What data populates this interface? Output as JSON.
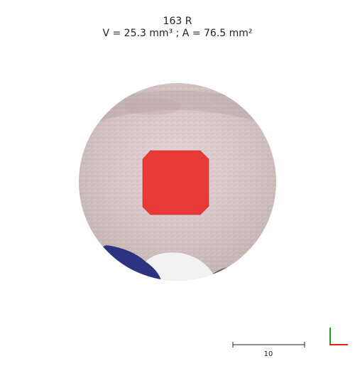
{
  "header": {
    "title": "163 R",
    "measurements": "V = 25.3 mm³ ; A = 76.5 mm²"
  },
  "scale_bar": {
    "label": "10"
  },
  "colors": {
    "lesion": "#e8332f",
    "skin": "#d8c8c8",
    "cloth": "#2a3480",
    "axis_x": "#e02020",
    "axis_y": "#18a018"
  }
}
